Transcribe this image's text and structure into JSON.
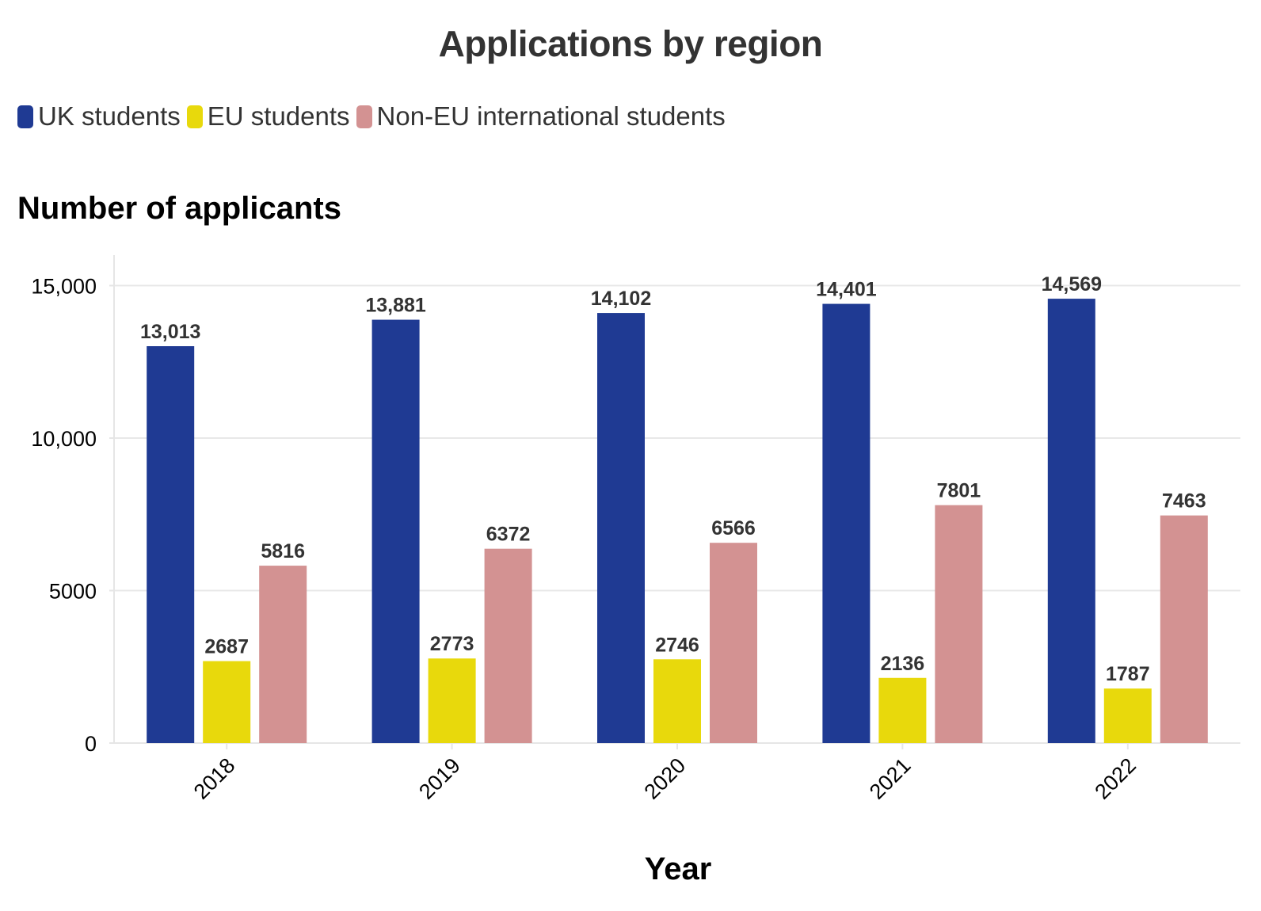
{
  "chart_data": {
    "type": "bar",
    "title": "Applications by region",
    "xlabel": "Year",
    "ylabel": "Number of applicants",
    "categories": [
      "2018",
      "2019",
      "2020",
      "2021",
      "2022"
    ],
    "series": [
      {
        "name": "UK students",
        "color": "#1f3a93",
        "values": [
          13013,
          13881,
          14102,
          14401,
          14569
        ],
        "labels": [
          "13,013",
          "13,881",
          "14,102",
          "14,401",
          "14,569"
        ]
      },
      {
        "name": "EU students",
        "color": "#e8d90c",
        "values": [
          2687,
          2773,
          2746,
          2136,
          1787
        ],
        "labels": [
          "2687",
          "2773",
          "2746",
          "2136",
          "1787"
        ]
      },
      {
        "name": "Non-EU international students",
        "color": "#d39292",
        "values": [
          5816,
          6372,
          6566,
          7801,
          7463
        ],
        "labels": [
          "5816",
          "6372",
          "6566",
          "7801",
          "7463"
        ]
      }
    ],
    "ylim": [
      0,
      16000
    ],
    "yticks": [
      0,
      5000,
      10000,
      15000
    ],
    "ytick_labels": [
      "0",
      "5000",
      "10,000",
      "15,000"
    ],
    "grid": true,
    "legend_position": "top-left"
  }
}
